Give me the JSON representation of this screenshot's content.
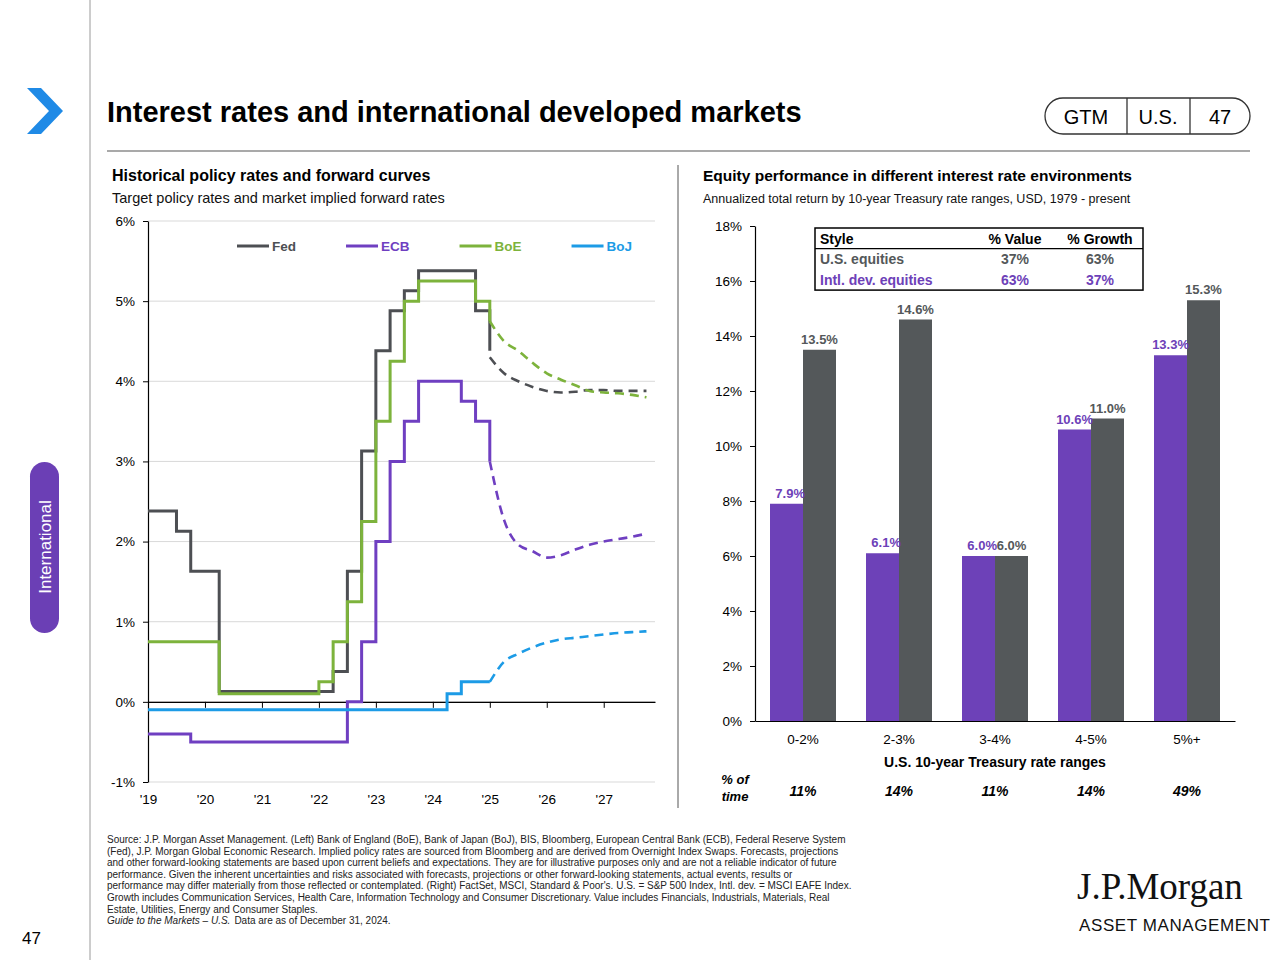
{
  "page": {
    "title": "Interest rates and international developed markets",
    "badge": [
      "GTM",
      "U.S.",
      "47"
    ],
    "section": "International",
    "source_lines": [
      "Source: J.P. Morgan Asset Management. (Left) Bank of England (BoE), Bank of Japan (BoJ), BIS, Bloomberg, European Central Bank (ECB), Federal Reserve System",
      "(Fed), J.P. Morgan Global Economic Research. Implied policy rates are sourced from Bloomberg and are derived from Overnight Index Swaps. Forecasts, projections",
      "and other forward-looking statements are based upon current beliefs and expectations. They are for illustrative purposes only and are not a reliable indicator of future",
      "performance. Given the inherent uncertainties and risks associated with forecasts, projections or other forward-looking statements, actual events, results or",
      "performance may differ materially from those reflected or contemplated. (Right) FactSet, MSCI, Standard & Poor's. U.S. = S&P 500 Index, Intl. dev. = MSCI EAFE Index.",
      "Growth includes Communication Services, Health Care, Information Technology and Consumer Discretionary. Value includes Financials, Industrials, Materials, Real",
      "Estate, Utilities, Energy and Consumer Staples."
    ],
    "source_last": [
      "Guide to the Markets – U.S.",
      "Data are as of December 31, 2024."
    ],
    "logo": [
      "J.P.Morgan",
      "ASSET MANAGEMENT"
    ],
    "page_number": "47"
  },
  "chart_data": [
    {
      "type": "line",
      "title": "Historical policy rates and forward curves",
      "subtitle": "Target policy rates and market implied forward rates",
      "x": [
        2019,
        2019.25,
        2019.5,
        2019.75,
        2020,
        2020.25,
        2020.5,
        2020.75,
        2021,
        2021.25,
        2021.5,
        2021.75,
        2022,
        2022.25,
        2022.5,
        2022.75,
        2023,
        2023.25,
        2023.5,
        2023.75,
        2024,
        2024.25,
        2024.5,
        2024.75,
        2025,
        2025.25,
        2025.5,
        2025.75,
        2026,
        2026.25,
        2026.5,
        2026.75,
        2027,
        2027.25,
        2027.5,
        2027.75
      ],
      "xlim": [
        2019,
        2027.9
      ],
      "xticks": [
        {
          "value": 2019,
          "label": "'19"
        },
        {
          "value": 2020,
          "label": "'20"
        },
        {
          "value": 2021,
          "label": "'21"
        },
        {
          "value": 2022,
          "label": "'22"
        },
        {
          "value": 2023,
          "label": "'23"
        },
        {
          "value": 2024,
          "label": "'24"
        },
        {
          "value": 2025,
          "label": "'25"
        },
        {
          "value": 2026,
          "label": "'26"
        },
        {
          "value": 2027,
          "label": "'27"
        }
      ],
      "ylim": [
        -1,
        6
      ],
      "yticks": [
        {
          "value": -1,
          "label": "-1%"
        },
        {
          "value": 0,
          "label": "0%"
        },
        {
          "value": 1,
          "label": "1%"
        },
        {
          "value": 2,
          "label": "2%"
        },
        {
          "value": 3,
          "label": "3%"
        },
        {
          "value": 4,
          "label": "4%"
        },
        {
          "value": 5,
          "label": "5%"
        },
        {
          "value": 6,
          "label": "6%"
        }
      ],
      "grid": true,
      "legend": "top",
      "series": [
        {
          "name": "Fed",
          "color": "#4d4f53",
          "line_style": "solid",
          "values": [
            2.38,
            2.38,
            2.13,
            1.63,
            1.63,
            0.13,
            0.13,
            0.13,
            0.13,
            0.13,
            0.13,
            0.13,
            0.13,
            0.38,
            1.63,
            3.13,
            4.38,
            4.88,
            5.13,
            5.38,
            5.38,
            5.38,
            5.38,
            4.88,
            4.38,
            null,
            null,
            null,
            null,
            null,
            null,
            null,
            null,
            null,
            null,
            null
          ]
        },
        {
          "name": "ECB",
          "color": "#6f3fc1",
          "line_style": "solid",
          "values": [
            -0.4,
            -0.4,
            -0.4,
            -0.5,
            -0.5,
            -0.5,
            -0.5,
            -0.5,
            -0.5,
            -0.5,
            -0.5,
            -0.5,
            -0.5,
            -0.5,
            0.0,
            0.75,
            2.0,
            3.0,
            3.5,
            4.0,
            4.0,
            4.0,
            3.75,
            3.5,
            3.0,
            null,
            null,
            null,
            null,
            null,
            null,
            null,
            null,
            null,
            null,
            null
          ]
        },
        {
          "name": "BoE",
          "color": "#7db33c",
          "line_style": "solid",
          "values": [
            0.75,
            0.75,
            0.75,
            0.75,
            0.75,
            0.1,
            0.1,
            0.1,
            0.1,
            0.1,
            0.1,
            0.1,
            0.25,
            0.75,
            1.25,
            2.25,
            3.5,
            4.25,
            5.0,
            5.25,
            5.25,
            5.25,
            5.25,
            5.0,
            4.75,
            null,
            null,
            null,
            null,
            null,
            null,
            null,
            null,
            null,
            null,
            null
          ]
        },
        {
          "name": "BoJ",
          "color": "#1c9be6",
          "line_style": "solid",
          "values": [
            -0.1,
            -0.1,
            -0.1,
            -0.1,
            -0.1,
            -0.1,
            -0.1,
            -0.1,
            -0.1,
            -0.1,
            -0.1,
            -0.1,
            -0.1,
            -0.1,
            -0.1,
            -0.1,
            -0.1,
            -0.1,
            -0.1,
            -0.1,
            -0.1,
            0.1,
            0.25,
            0.25,
            0.25,
            null,
            null,
            null,
            null,
            null,
            null,
            null,
            null,
            null,
            null,
            null
          ]
        },
        {
          "name": "Fed",
          "color": "#4d4f53",
          "line_style": "dashed",
          "values": [
            null,
            null,
            null,
            null,
            null,
            null,
            null,
            null,
            null,
            null,
            null,
            null,
            null,
            null,
            null,
            null,
            null,
            null,
            null,
            null,
            null,
            null,
            null,
            null,
            4.3,
            4.1,
            4.0,
            3.93,
            3.88,
            3.86,
            3.87,
            3.89,
            3.89,
            3.88,
            3.88,
            3.88
          ]
        },
        {
          "name": "ECB",
          "color": "#6f3fc1",
          "line_style": "dashed",
          "values": [
            null,
            null,
            null,
            null,
            null,
            null,
            null,
            null,
            null,
            null,
            null,
            null,
            null,
            null,
            null,
            null,
            null,
            null,
            null,
            null,
            null,
            null,
            null,
            null,
            3.0,
            2.27,
            1.96,
            1.88,
            1.8,
            1.83,
            1.9,
            1.96,
            2.0,
            2.03,
            2.06,
            2.1
          ]
        },
        {
          "name": "BoE",
          "color": "#7db33c",
          "line_style": "dashed",
          "values": [
            null,
            null,
            null,
            null,
            null,
            null,
            null,
            null,
            null,
            null,
            null,
            null,
            null,
            null,
            null,
            null,
            null,
            null,
            null,
            null,
            null,
            null,
            null,
            null,
            4.75,
            4.5,
            4.38,
            4.23,
            4.1,
            4.02,
            3.95,
            3.88,
            3.86,
            3.85,
            3.83,
            3.8
          ]
        },
        {
          "name": "BoJ",
          "color": "#1c9be6",
          "line_style": "dashed",
          "values": [
            null,
            null,
            null,
            null,
            null,
            null,
            null,
            null,
            null,
            null,
            null,
            null,
            null,
            null,
            null,
            null,
            null,
            null,
            null,
            null,
            null,
            null,
            null,
            null,
            0.25,
            0.5,
            0.6,
            0.68,
            0.74,
            0.78,
            0.8,
            0.82,
            0.84,
            0.86,
            0.87,
            0.88
          ]
        }
      ]
    },
    {
      "type": "bar",
      "title": "Equity performance in different interest rate environments",
      "subtitle": "Annualized total return by 10-year Treasury rate ranges, USD, 1979 - present",
      "x_label": "U.S. 10-year Treasury rate ranges",
      "categories": [
        "0-2%",
        "2-3%",
        "3-4%",
        "4-5%",
        "5%+"
      ],
      "ylim": [
        0,
        18
      ],
      "yticks": [
        {
          "value": 0,
          "label": "0%"
        },
        {
          "value": 2,
          "label": "2%"
        },
        {
          "value": 4,
          "label": "4%"
        },
        {
          "value": 6,
          "label": "6%"
        },
        {
          "value": 8,
          "label": "8%"
        },
        {
          "value": 10,
          "label": "10%"
        },
        {
          "value": 12,
          "label": "12%"
        },
        {
          "value": 14,
          "label": "14%"
        },
        {
          "value": 16,
          "label": "16%"
        },
        {
          "value": 18,
          "label": "18%"
        }
      ],
      "grid": false,
      "data_labels": true,
      "series": [
        {
          "name": "U.S. equities",
          "color": "#54585a",
          "values": [
            13.5,
            14.6,
            6.0,
            11.0,
            15.3
          ],
          "value_labels": [
            "13.5%",
            "14.6%",
            "6.0%",
            "11.0%",
            "15.3%"
          ]
        },
        {
          "name": "Intl. dev. equities",
          "color": "#6d41b8",
          "values": [
            7.9,
            6.1,
            6.0,
            10.6,
            13.3
          ],
          "value_labels": [
            "7.9%",
            "6.1%",
            "6.0%",
            "10.6%",
            "13.3%"
          ]
        }
      ],
      "style_table": {
        "header": [
          "Style",
          "% Value",
          "% Growth"
        ],
        "rows": [
          [
            "37%",
            "63%"
          ],
          [
            "63%",
            "37%"
          ]
        ]
      },
      "time_share": {
        "label": [
          "% of",
          "time"
        ],
        "values": [
          11,
          14,
          11,
          14,
          49
        ],
        "value_labels": [
          "11%",
          "14%",
          "11%",
          "14%",
          "49%"
        ]
      }
    }
  ]
}
